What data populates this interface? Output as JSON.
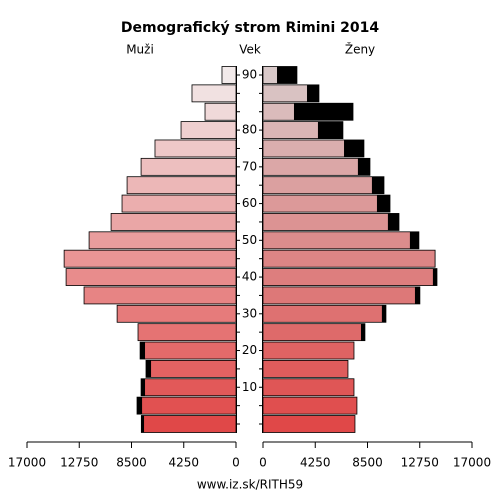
{
  "chart_data": {
    "type": "pyramid",
    "title": "Demografický strom Rimini 2014",
    "y_label": "Vek",
    "source": "www.iz.sk/RITH59",
    "categories": [
      null,
      null,
      "10",
      null,
      "20",
      null,
      "30",
      null,
      "40",
      null,
      "50",
      null,
      "60",
      null,
      "70",
      null,
      "80",
      null,
      null,
      "90"
    ],
    "series": [
      {
        "name": "Muži",
        "color": "#e04848",
        "color_top": "#f2eaea",
        "values": [
          7700,
          8050,
          7720,
          7320,
          7800,
          7970,
          9670,
          12360,
          13820,
          13980,
          11950,
          10160,
          9270,
          8860,
          7720,
          6590,
          4470,
          2520,
          3580,
          1140
        ]
      },
      {
        "name": "Ženy",
        "color": "#e04848",
        "color_top": "#d9c9c9",
        "values": [
          7480,
          7640,
          7400,
          6910,
          7400,
          8290,
          10000,
          12760,
          14150,
          14000,
          12680,
          11060,
          10330,
          9840,
          8700,
          8210,
          6500,
          7320,
          4550,
          2760
        ]
      }
    ],
    "surplus_color": "#000000",
    "xlim": [
      0,
      17000
    ],
    "xticks": [
      0,
      4250,
      8500,
      12750,
      17000
    ]
  }
}
